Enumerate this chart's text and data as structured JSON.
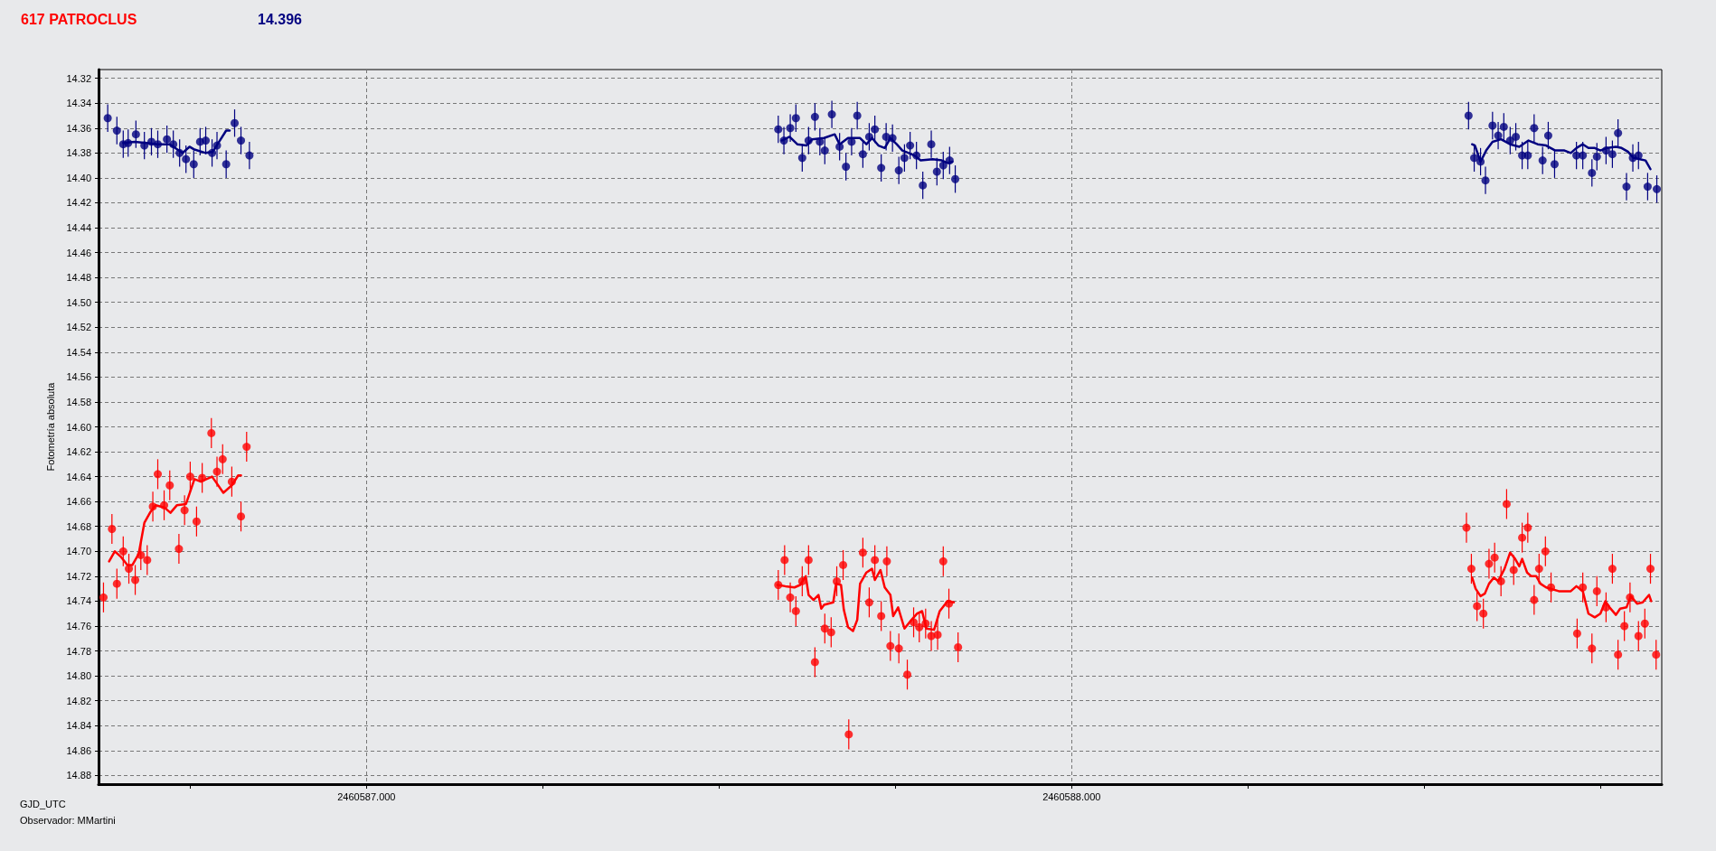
{
  "chart_data": {
    "type": "scatter",
    "title": "617 PATROCLUS",
    "subtitle": "14.396",
    "xlabel": "GJD_UTC",
    "ylabel": "Fotometría absoluta",
    "annotations": [
      "Observador: MMartini"
    ],
    "xlim": [
      2460586.62,
      2460588.837
    ],
    "xticks": [
      {
        "value": 2460586.75,
        "label": null
      },
      {
        "value": 2460587,
        "label": "2460587.000"
      },
      {
        "value": 2460587.25,
        "label": null
      },
      {
        "value": 2460587.5,
        "label": null
      },
      {
        "value": 2460587.75,
        "label": null
      },
      {
        "value": 2460588,
        "label": "2460588.000"
      },
      {
        "value": 2460588.25,
        "label": null
      },
      {
        "value": 2460588.5,
        "label": null
      },
      {
        "value": 2460588.75,
        "label": null
      }
    ],
    "ylim": [
      14.887,
      14.313
    ],
    "yticks": [
      {
        "value": 14.32,
        "label": "14.32"
      },
      {
        "value": 14.34,
        "label": "14.34"
      },
      {
        "value": 14.36,
        "label": "14.36"
      },
      {
        "value": 14.38,
        "label": "14.38"
      },
      {
        "value": 14.4,
        "label": "14.40"
      },
      {
        "value": 14.42,
        "label": "14.42"
      },
      {
        "value": 14.44,
        "label": "14.44"
      },
      {
        "value": 14.46,
        "label": "14.46"
      },
      {
        "value": 14.48,
        "label": "14.48"
      },
      {
        "value": 14.5,
        "label": "14.50"
      },
      {
        "value": 14.52,
        "label": "14.52"
      },
      {
        "value": 14.54,
        "label": "14.54"
      },
      {
        "value": 14.56,
        "label": "14.56"
      },
      {
        "value": 14.58,
        "label": "14.58"
      },
      {
        "value": 14.6,
        "label": "14.60"
      },
      {
        "value": 14.62,
        "label": "14.62"
      },
      {
        "value": 14.64,
        "label": "14.64"
      },
      {
        "value": 14.66,
        "label": "14.66"
      },
      {
        "value": 14.68,
        "label": "14.68"
      },
      {
        "value": 14.7,
        "label": "14.70"
      },
      {
        "value": 14.72,
        "label": "14.72"
      },
      {
        "value": 14.74,
        "label": "14.74"
      },
      {
        "value": 14.76,
        "label": "14.76"
      },
      {
        "value": 14.78,
        "label": "14.78"
      },
      {
        "value": 14.8,
        "label": "14.80"
      },
      {
        "value": 14.82,
        "label": "14.82"
      },
      {
        "value": 14.84,
        "label": "14.84"
      },
      {
        "value": 14.86,
        "label": "14.86"
      },
      {
        "value": 14.88,
        "label": "14.88"
      }
    ],
    "grid": true,
    "marker": "circle",
    "series": [
      {
        "color": "#000080",
        "x": [
          2460586.633,
          2460586.646,
          2460586.655,
          2460586.662,
          2460586.673,
          2460586.685,
          2460586.695,
          2460586.704,
          2460586.717,
          2460586.726,
          2460586.735,
          2460586.744,
          2460586.755,
          2460586.764,
          2460586.772,
          2460586.781,
          2460586.788,
          2460586.801,
          2460586.813,
          2460586.822,
          2460586.834,
          2460587.584,
          2460587.592,
          2460587.601,
          2460587.609,
          2460587.618,
          2460587.627,
          2460587.636,
          2460587.643,
          2460587.65,
          2460587.66,
          2460587.671,
          2460587.68,
          2460587.688,
          2460587.696,
          2460587.704,
          2460587.713,
          2460587.721,
          2460587.73,
          2460587.737,
          2460587.746,
          2460587.755,
          2460587.763,
          2460587.771,
          2460587.78,
          2460587.789,
          2460587.801,
          2460587.809,
          2460587.818,
          2460587.827,
          2460587.835,
          2460588.563,
          2460588.571,
          2460588.58,
          2460588.587,
          2460588.597,
          2460588.605,
          2460588.613,
          2460588.622,
          2460588.63,
          2460588.639,
          2460588.647,
          2460588.656,
          2460588.668,
          2460588.676,
          2460588.685,
          2460588.716,
          2460588.725,
          2460588.738,
          2460588.745,
          2460588.758,
          2460588.767,
          2460588.775,
          2460588.787,
          2460588.796,
          2460588.804,
          2460588.817,
          2460588.83
        ],
        "values": [
          14.352,
          14.362,
          14.373,
          14.372,
          14.365,
          14.374,
          14.371,
          14.373,
          14.369,
          14.373,
          14.38,
          14.385,
          14.389,
          14.371,
          14.37,
          14.38,
          14.374,
          14.389,
          14.356,
          14.37,
          14.382,
          14.361,
          14.37,
          14.36,
          14.352,
          14.384,
          14.37,
          14.351,
          14.371,
          14.378,
          14.349,
          14.375,
          14.391,
          14.371,
          14.35,
          14.381,
          14.367,
          14.361,
          14.392,
          14.367,
          14.368,
          14.394,
          14.384,
          14.374,
          14.382,
          14.406,
          14.373,
          14.395,
          14.39,
          14.386,
          14.401,
          14.35,
          14.384,
          14.387,
          14.402,
          14.358,
          14.366,
          14.359,
          14.37,
          14.367,
          14.382,
          14.382,
          14.36,
          14.386,
          14.366,
          14.389,
          14.382,
          14.382,
          14.396,
          14.383,
          14.378,
          14.381,
          14.364,
          14.407,
          14.384,
          14.382,
          14.407,
          14.409
        ],
        "errors": [
          0.011,
          0.011,
          0.011,
          0.011,
          0.011,
          0.011,
          0.011,
          0.011,
          0.011,
          0.011,
          0.011,
          0.011,
          0.011,
          0.011,
          0.011,
          0.011,
          0.011,
          0.011,
          0.011,
          0.011,
          0.011,
          0.011,
          0.011,
          0.011,
          0.011,
          0.011,
          0.011,
          0.011,
          0.011,
          0.011,
          0.011,
          0.011,
          0.011,
          0.011,
          0.011,
          0.011,
          0.011,
          0.011,
          0.011,
          0.011,
          0.011,
          0.011,
          0.011,
          0.011,
          0.011,
          0.011,
          0.011,
          0.011,
          0.011,
          0.011,
          0.011,
          0.011,
          0.011,
          0.011,
          0.011,
          0.011,
          0.011,
          0.011,
          0.011,
          0.011,
          0.011,
          0.011,
          0.011,
          0.011,
          0.011,
          0.011,
          0.011,
          0.011,
          0.011,
          0.011,
          0.011,
          0.011,
          0.011,
          0.011,
          0.011,
          0.011,
          0.011,
          0.011
        ]
      },
      {
        "color": "#ff0000",
        "x": [
          2460586.627,
          2460586.639,
          2460586.646,
          2460586.655,
          2460586.663,
          2460586.672,
          2460586.68,
          2460586.689,
          2460586.697,
          2460586.704,
          2460586.713,
          2460586.721,
          2460586.734,
          2460586.742,
          2460586.75,
          2460586.759,
          2460586.767,
          2460586.78,
          2460586.788,
          2460586.796,
          2460586.809,
          2460586.822,
          2460586.83,
          2460587.584,
          2460587.593,
          2460587.601,
          2460587.609,
          2460587.618,
          2460587.627,
          2460587.636,
          2460587.65,
          2460587.659,
          2460587.667,
          2460587.676,
          2460587.684,
          2460587.704,
          2460587.713,
          2460587.721,
          2460587.73,
          2460587.738,
          2460587.743,
          2460587.755,
          2460587.767,
          2460587.776,
          2460587.784,
          2460587.793,
          2460587.801,
          2460587.81,
          2460587.818,
          2460587.826,
          2460587.839,
          2460588.56,
          2460588.567,
          2460588.575,
          2460588.584,
          2460588.592,
          2460588.6,
          2460588.609,
          2460588.617,
          2460588.627,
          2460588.639,
          2460588.647,
          2460588.656,
          2460588.663,
          2460588.672,
          2460588.68,
          2460588.717,
          2460588.725,
          2460588.738,
          2460588.745,
          2460588.758,
          2460588.767,
          2460588.775,
          2460588.784,
          2460588.792,
          2460588.804,
          2460588.813,
          2460588.821,
          2460588.829
        ],
        "values": [
          14.737,
          14.682,
          14.726,
          14.7,
          14.714,
          14.723,
          14.703,
          14.707,
          14.664,
          14.638,
          14.663,
          14.647,
          14.698,
          14.667,
          14.64,
          14.676,
          14.641,
          14.605,
          14.636,
          14.626,
          14.644,
          14.672,
          14.616,
          14.727,
          14.707,
          14.737,
          14.748,
          14.724,
          14.707,
          14.789,
          14.762,
          14.765,
          14.724,
          14.711,
          14.847,
          14.701,
          14.741,
          14.707,
          14.752,
          14.708,
          14.776,
          14.778,
          14.799,
          14.757,
          14.761,
          14.758,
          14.768,
          14.767,
          14.708,
          14.742,
          14.777,
          14.681,
          14.714,
          14.744,
          14.75,
          14.71,
          14.705,
          14.724,
          14.662,
          14.715,
          14.689,
          14.681,
          14.739,
          14.714,
          14.7,
          14.729,
          14.766,
          14.729,
          14.778,
          14.732,
          14.745,
          14.714,
          14.783,
          14.76,
          14.737,
          14.768,
          14.758,
          14.714,
          14.783
        ],
        "errors": [
          0.012,
          0.012,
          0.012,
          0.012,
          0.012,
          0.012,
          0.012,
          0.012,
          0.012,
          0.012,
          0.012,
          0.012,
          0.012,
          0.012,
          0.012,
          0.012,
          0.012,
          0.012,
          0.012,
          0.012,
          0.012,
          0.012,
          0.012,
          0.012,
          0.012,
          0.012,
          0.012,
          0.012,
          0.012,
          0.012,
          0.012,
          0.012,
          0.012,
          0.012,
          0.012,
          0.012,
          0.012,
          0.012,
          0.012,
          0.012,
          0.012,
          0.012,
          0.012,
          0.012,
          0.012,
          0.012,
          0.012,
          0.012,
          0.012,
          0.012,
          0.012,
          0.012,
          0.012,
          0.012,
          0.012,
          0.012,
          0.012,
          0.012,
          0.012,
          0.012,
          0.012,
          0.012,
          0.012,
          0.012,
          0.012,
          0.012,
          0.012,
          0.012,
          0.012,
          0.012,
          0.012,
          0.012,
          0.012,
          0.012,
          0.012,
          0.012,
          0.012,
          0.012,
          0.012
        ]
      },
      {
        "type": "line",
        "color": "#000080",
        "marker": "none",
        "line_style": "solid",
        "x": [
          2460586.655,
          2460586.671,
          2460586.688,
          2460586.704,
          2460586.721,
          2460586.739,
          2460586.749,
          2460586.755,
          2460586.772,
          2460586.782,
          2460586.792,
          2460586.801,
          2460586.806,
          2460587.2,
          2460587.589,
          2460587.6,
          2460587.611,
          2460587.624,
          2460587.632,
          2460587.649,
          2460587.664,
          2460587.671,
          2460587.683,
          2460587.7,
          2460587.709,
          2460587.717,
          2460587.726,
          2460587.735,
          2460587.743,
          2460587.752,
          2460587.76,
          2460587.769,
          2460587.777,
          2460587.786,
          2460587.803,
          2460587.816,
          2460587.824,
          2460587.831,
          2460588.2,
          2460588.568,
          2460588.572,
          2460588.58,
          2460588.588,
          2460588.597,
          2460588.609,
          2460588.622,
          2460588.635,
          2460588.648,
          2460588.661,
          2460588.673,
          2460588.686,
          2460588.699,
          2460588.708,
          2460588.716,
          2460588.725,
          2460588.733,
          2460588.742,
          2460588.75,
          2460588.759,
          2460588.772,
          2460588.78,
          2460588.789,
          2460588.797,
          2460588.806,
          2460588.814,
          2460588.821
        ],
        "values": [
          14.372,
          14.371,
          14.372,
          14.373,
          14.373,
          14.38,
          14.375,
          14.377,
          14.38,
          14.379,
          14.37,
          14.362,
          14.362,
          null,
          14.37,
          14.367,
          14.373,
          14.374,
          14.369,
          14.368,
          14.365,
          14.373,
          14.368,
          14.368,
          14.373,
          14.368,
          14.374,
          14.376,
          14.368,
          14.373,
          14.378,
          14.38,
          14.382,
          14.386,
          14.385,
          14.386,
          14.388,
          14.387,
          null,
          14.373,
          14.374,
          14.387,
          14.378,
          14.371,
          14.369,
          14.373,
          14.375,
          14.37,
          14.373,
          14.374,
          14.378,
          14.378,
          14.38,
          14.376,
          14.373,
          14.376,
          14.376,
          14.378,
          14.376,
          14.375,
          14.376,
          14.379,
          14.384,
          14.385,
          14.386,
          14.393
        ]
      },
      {
        "type": "line",
        "color": "#ff0000",
        "marker": "none",
        "line_style": "solid",
        "x": [
          2460586.635,
          2460586.643,
          2460586.651,
          2460586.661,
          2460586.668,
          2460586.677,
          2460586.685,
          2460586.694,
          2460586.701,
          2460586.714,
          2460586.722,
          2460586.731,
          2460586.744,
          2460586.756,
          2460586.765,
          2460586.781,
          2460586.786,
          2460586.797,
          2460586.809,
          2460586.818,
          2460586.822,
          2460587.2,
          2460587.583,
          2460587.594,
          2460587.607,
          2460587.615,
          2460587.623,
          2460587.627,
          2460587.634,
          2460587.641,
          2460587.645,
          2460587.649,
          2460587.662,
          2460587.666,
          2460587.673,
          2460587.677,
          2460587.683,
          2460587.69,
          2460587.696,
          2460587.7,
          2460587.709,
          2460587.717,
          2460587.721,
          2460587.729,
          2460587.735,
          2460587.743,
          2460587.747,
          2460587.754,
          2460587.763,
          2460587.773,
          2460587.781,
          2460587.788,
          2460587.794,
          2460587.805,
          2460587.813,
          2460587.824,
          2460587.833,
          2460588.2,
          2460588.568,
          2460588.573,
          2460588.58,
          2460588.586,
          2460588.592,
          2460588.599,
          2460588.605,
          2460588.614,
          2460588.622,
          2460588.629,
          2460588.635,
          2460588.639,
          2460588.646,
          2460588.652,
          2460588.659,
          2460588.665,
          2460588.673,
          2460588.691,
          2460588.708,
          2460588.716,
          2460588.725,
          2460588.733,
          2460588.742,
          2460588.75,
          2460588.757,
          2460588.763,
          2460588.772,
          2460588.778,
          2460588.787,
          2460588.793,
          2460588.802,
          2460588.81,
          2460588.819,
          2460588.822
        ],
        "values": [
          14.708,
          14.7,
          14.704,
          14.711,
          14.711,
          14.702,
          14.677,
          14.668,
          14.663,
          14.665,
          14.669,
          14.663,
          14.662,
          14.642,
          14.644,
          14.64,
          14.644,
          14.653,
          14.647,
          14.639,
          14.639,
          null,
          14.727,
          14.728,
          14.729,
          14.727,
          14.72,
          14.735,
          14.739,
          14.735,
          14.746,
          14.743,
          14.741,
          14.726,
          14.727,
          14.747,
          14.761,
          14.764,
          14.755,
          14.726,
          14.717,
          14.714,
          14.723,
          14.715,
          14.729,
          14.735,
          14.752,
          14.745,
          14.762,
          14.755,
          14.75,
          14.748,
          14.762,
          14.763,
          14.748,
          14.74,
          14.741,
          null,
          14.721,
          14.73,
          14.736,
          14.734,
          14.726,
          14.721,
          14.724,
          14.714,
          14.701,
          14.706,
          14.712,
          14.706,
          14.717,
          14.72,
          14.72,
          14.726,
          14.729,
          14.732,
          14.732,
          14.728,
          14.732,
          14.75,
          14.753,
          14.75,
          14.74,
          14.745,
          14.751,
          14.746,
          14.745,
          14.736,
          14.742,
          14.741,
          14.735,
          14.74
        ]
      }
    ]
  }
}
